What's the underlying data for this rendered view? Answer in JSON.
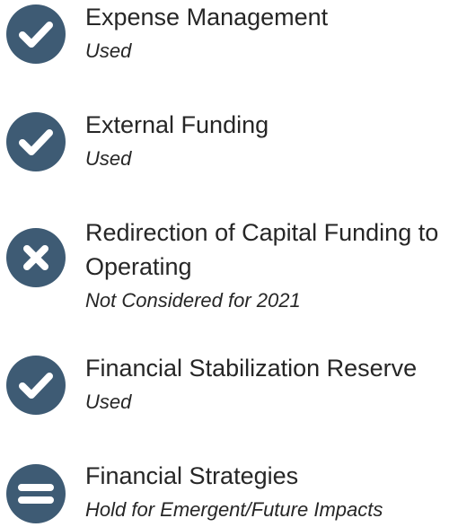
{
  "items": [
    {
      "title": "Expense Management",
      "status": "Used"
    },
    {
      "title": "External Funding",
      "status": "Used"
    },
    {
      "title": "Redirection of Capital Funding to Operating",
      "status": "Not Considered for 2021"
    },
    {
      "title": "Financial Stabilization Reserve",
      "status": "Used"
    },
    {
      "title": "Financial Strategies",
      "status": "Hold for Emergent/Future Impacts"
    }
  ]
}
